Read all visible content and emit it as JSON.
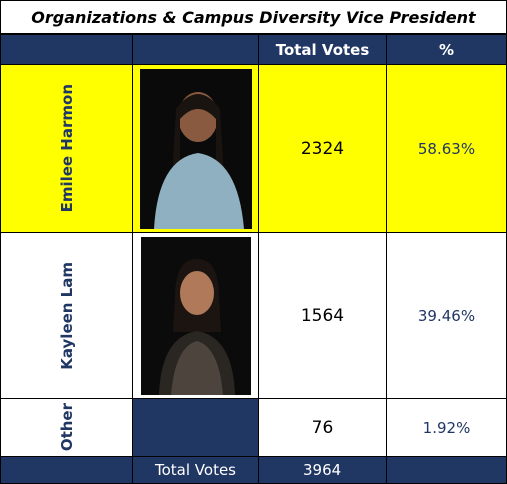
{
  "title": "Organizations & Campus Diversity Vice President",
  "header": {
    "votes": "Total Votes",
    "percent": "%"
  },
  "rows": [
    {
      "name": "Emilee Harmon",
      "votes": 2324,
      "percent": "58.63%"
    },
    {
      "name": "Kayleen Lam",
      "votes": 1564,
      "percent": "39.46%"
    },
    {
      "name": "Other",
      "votes": 76,
      "percent": "1.92%"
    }
  ],
  "footer": {
    "label": "Total Votes",
    "votes": 3964
  }
}
